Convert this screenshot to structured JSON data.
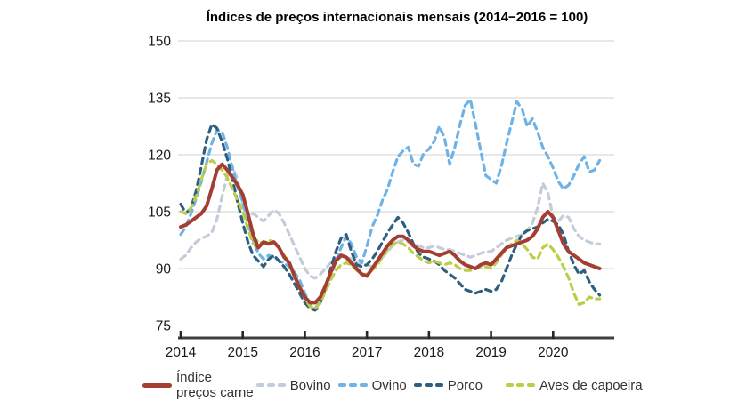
{
  "colors": {
    "grid": "#d9d9d9",
    "axis": "#404040",
    "tick": "#262626",
    "text": "#1a1a1a",
    "legend_text": "#333333"
  },
  "chart_data": {
    "type": "line",
    "title": "Índices de preços internacionais mensais (2014−2016 = 100)",
    "frequency": "monthly",
    "x_start": "2014-01",
    "x_end": "2020-10",
    "x_tick_labels": [
      "2014",
      "2015",
      "2016",
      "2017",
      "2018",
      "2019",
      "2020"
    ],
    "y_ticks": [
      75,
      90,
      105,
      120,
      135,
      150
    ],
    "ylim": [
      71.5,
      150
    ],
    "grid": "horizontal gridlines at 90,105,120,135,150; no vertical grid",
    "legend_position": "bottom",
    "z_order": [
      1,
      2,
      3,
      4,
      0
    ],
    "series": [
      {
        "id": "indice-precos-carne",
        "name": "Índice preços carne",
        "legend_lines": [
          "Índice",
          "preços carne"
        ],
        "color": "#A43E32",
        "style": "solid",
        "values": [
          101,
          101.5,
          102.5,
          103.5,
          104.5,
          106.5,
          111,
          116,
          117.5,
          116,
          114,
          112,
          109.5,
          104.5,
          99,
          95.5,
          97,
          96.5,
          97,
          95.5,
          93,
          91.5,
          88,
          85,
          82.5,
          81,
          81,
          82.5,
          85.5,
          89,
          92,
          93.5,
          93,
          91.5,
          90,
          88.5,
          88,
          90,
          92,
          94,
          96,
          97.5,
          98.5,
          98.5,
          97.5,
          96,
          95,
          94.5,
          94.5,
          94,
          93.5,
          94,
          94.5,
          93.5,
          92,
          91,
          90.5,
          90,
          91,
          91.5,
          91,
          92.5,
          94,
          95.5,
          96,
          96.5,
          97,
          97.5,
          98.5,
          100.5,
          103.5,
          105,
          103.5,
          100,
          96.5,
          94.5,
          93.5,
          92.5,
          91.5,
          91,
          90.5,
          90
        ]
      },
      {
        "id": "bovino",
        "name": "Bovino",
        "color": "#C3CCD9",
        "style": "dashed",
        "values": [
          92.5,
          93.5,
          95.5,
          97,
          98,
          98.5,
          99.5,
          103,
          109,
          114.5,
          117,
          113.5,
          106.5,
          103.5,
          104.5,
          103.5,
          102.5,
          104,
          105.5,
          104.5,
          102,
          99,
          96,
          93,
          90,
          88,
          87.5,
          88.5,
          90,
          91.5,
          92.5,
          93,
          93,
          92.5,
          91.5,
          91,
          91,
          90.5,
          91.5,
          93,
          94.5,
          96,
          97,
          97.5,
          97,
          96.5,
          96,
          95.5,
          95.5,
          96,
          95.5,
          95,
          95,
          94.5,
          94,
          93.5,
          93,
          93.5,
          94,
          94.5,
          94.5,
          95.5,
          96.5,
          97.5,
          98,
          98.5,
          99,
          100,
          102,
          106,
          112.5,
          110,
          103.5,
          102.5,
          104,
          103.5,
          100.5,
          98.5,
          97.5,
          97,
          96.5,
          96.5
        ]
      },
      {
        "id": "ovino",
        "name": "Ovino",
        "color": "#6FB3E6",
        "style": "dashed",
        "values": [
          99,
          101,
          104.5,
          108.5,
          113,
          118,
          123,
          126.5,
          126,
          122,
          116.5,
          111.5,
          107.5,
          102,
          97.5,
          94,
          92.5,
          93.5,
          93,
          92,
          91.5,
          90.5,
          89,
          87,
          83.5,
          80.5,
          79.5,
          81.5,
          84.5,
          88,
          92,
          95.5,
          98.5,
          96.5,
          93,
          91.5,
          96,
          101,
          104,
          108,
          111,
          115.5,
          119.5,
          121,
          122,
          117.5,
          117,
          120.5,
          121.5,
          123.5,
          127.5,
          124.5,
          117.5,
          122,
          128,
          133,
          134.5,
          128,
          121,
          114.5,
          113.5,
          112.5,
          117,
          123,
          128.5,
          134,
          132,
          127.5,
          129.5,
          126,
          122,
          119.5,
          116.5,
          113,
          111,
          112,
          114.5,
          117.5,
          119.5,
          115.5,
          116,
          118.5
        ]
      },
      {
        "id": "porco",
        "name": "Porco",
        "color": "#2F5F7F",
        "style": "dashed",
        "values": [
          107,
          104.5,
          106,
          110.5,
          117,
          124,
          128,
          127,
          123.5,
          119,
          113.5,
          107.5,
          102,
          97,
          93.5,
          92,
          90.5,
          92.5,
          93.5,
          92,
          90.5,
          88.5,
          86,
          83.5,
          81,
          79.5,
          79,
          81,
          85,
          90,
          94.5,
          98,
          99,
          94.5,
          91,
          90.5,
          91,
          92.5,
          94.5,
          97,
          99.5,
          101.5,
          103.5,
          102,
          99.5,
          96.5,
          94,
          93,
          92.5,
          92,
          91,
          89.5,
          88.5,
          87.5,
          86,
          84.5,
          84,
          83.5,
          84,
          84.5,
          84,
          84.5,
          86.5,
          90,
          93.5,
          96.5,
          99,
          100,
          100.5,
          101,
          102,
          103,
          102.5,
          101.5,
          99,
          94.5,
          91,
          88.5,
          89.5,
          86.5,
          84.5,
          83
        ]
      },
      {
        "id": "aves-de-capoeira",
        "name": "Aves de capoeira",
        "color": "#BDCE44",
        "style": "dashed",
        "values": [
          105,
          104.5,
          106,
          109,
          113.5,
          117.5,
          118.5,
          117.5,
          116,
          114,
          111,
          108,
          105,
          100.5,
          96.5,
          97.5,
          96.5,
          97.5,
          97,
          95.5,
          93.5,
          91.5,
          88.5,
          85.5,
          82,
          80,
          79.5,
          81,
          84,
          87,
          89.5,
          91,
          91.5,
          91,
          89.5,
          88.5,
          88.5,
          89.5,
          91,
          93,
          95,
          96.5,
          97,
          96.5,
          95.5,
          94,
          93,
          92,
          91.5,
          92,
          91.5,
          91,
          91.5,
          91,
          90,
          89.5,
          89.5,
          90,
          90.5,
          90.5,
          90,
          91.5,
          93.5,
          95.5,
          96.5,
          97.5,
          96.5,
          95,
          93,
          92.5,
          95.5,
          96.5,
          95,
          93,
          90.5,
          87.5,
          83.5,
          80.5,
          81,
          82.5,
          82,
          82
        ]
      }
    ]
  }
}
